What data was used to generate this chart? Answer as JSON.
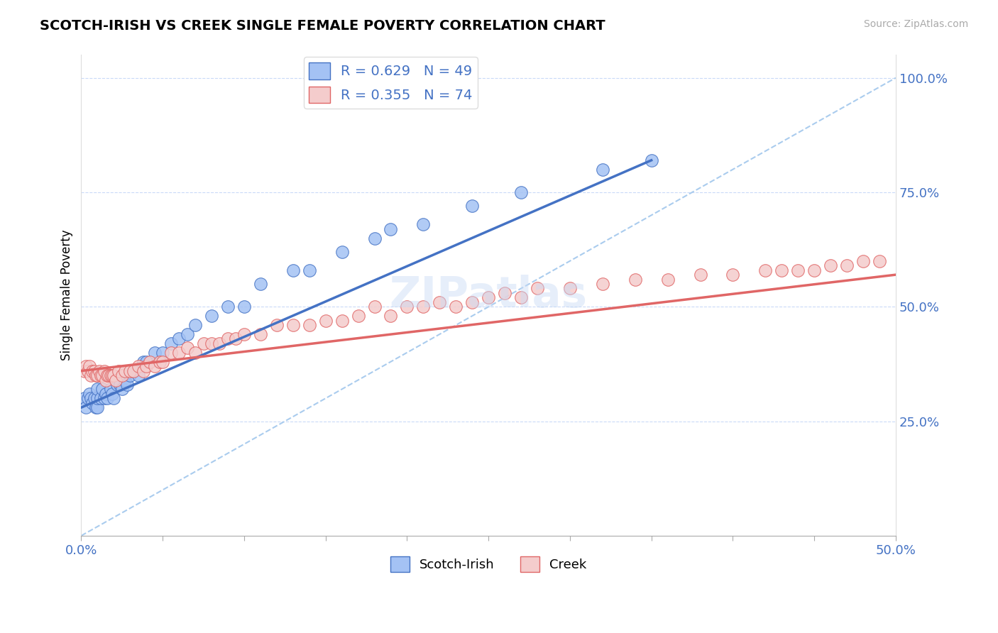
{
  "title": "SCOTCH-IRISH VS CREEK SINGLE FEMALE POVERTY CORRELATION CHART",
  "source": "Source: ZipAtlas.com",
  "ylabel": "Single Female Poverty",
  "xlim": [
    0.0,
    0.5
  ],
  "ylim": [
    0.0,
    1.05
  ],
  "scotch_irish_color": "#a4c2f4",
  "creek_color": "#f4cccc",
  "trend_scotch_color": "#4472c4",
  "trend_creek_color": "#e06666",
  "diagonal_color": "#aaccee",
  "R_scotch": 0.629,
  "N_scotch": 49,
  "R_creek": 0.355,
  "N_creek": 74,
  "scotch_trend_x0": 0.0,
  "scotch_trend_y0": 0.28,
  "scotch_trend_x1": 0.35,
  "scotch_trend_y1": 0.82,
  "creek_trend_x0": 0.0,
  "creek_trend_y0": 0.36,
  "creek_trend_x1": 0.5,
  "creek_trend_y1": 0.57,
  "scotch_irish_x": [
    0.002,
    0.003,
    0.004,
    0.005,
    0.006,
    0.007,
    0.008,
    0.009,
    0.01,
    0.01,
    0.01,
    0.012,
    0.013,
    0.014,
    0.015,
    0.016,
    0.018,
    0.019,
    0.02,
    0.022,
    0.024,
    0.025,
    0.027,
    0.028,
    0.03,
    0.032,
    0.035,
    0.038,
    0.04,
    0.045,
    0.05,
    0.055,
    0.06,
    0.065,
    0.07,
    0.08,
    0.09,
    0.1,
    0.11,
    0.13,
    0.14,
    0.16,
    0.18,
    0.19,
    0.21,
    0.24,
    0.27,
    0.32,
    0.35
  ],
  "scotch_irish_y": [
    0.3,
    0.28,
    0.3,
    0.31,
    0.3,
    0.29,
    0.3,
    0.28,
    0.28,
    0.3,
    0.32,
    0.3,
    0.32,
    0.3,
    0.31,
    0.3,
    0.32,
    0.31,
    0.3,
    0.33,
    0.33,
    0.32,
    0.34,
    0.33,
    0.35,
    0.36,
    0.35,
    0.38,
    0.38,
    0.4,
    0.4,
    0.42,
    0.43,
    0.44,
    0.46,
    0.48,
    0.5,
    0.5,
    0.55,
    0.58,
    0.58,
    0.62,
    0.65,
    0.67,
    0.68,
    0.72,
    0.75,
    0.8,
    0.82
  ],
  "creek_x": [
    0.002,
    0.003,
    0.004,
    0.005,
    0.006,
    0.007,
    0.008,
    0.009,
    0.01,
    0.011,
    0.012,
    0.013,
    0.014,
    0.015,
    0.016,
    0.017,
    0.018,
    0.019,
    0.02,
    0.021,
    0.023,
    0.025,
    0.027,
    0.03,
    0.032,
    0.035,
    0.038,
    0.04,
    0.042,
    0.045,
    0.048,
    0.05,
    0.055,
    0.06,
    0.065,
    0.07,
    0.075,
    0.08,
    0.085,
    0.09,
    0.095,
    0.1,
    0.11,
    0.12,
    0.13,
    0.14,
    0.15,
    0.16,
    0.17,
    0.18,
    0.19,
    0.2,
    0.21,
    0.22,
    0.23,
    0.24,
    0.25,
    0.26,
    0.27,
    0.28,
    0.3,
    0.32,
    0.34,
    0.36,
    0.38,
    0.4,
    0.42,
    0.43,
    0.44,
    0.45,
    0.46,
    0.47,
    0.48,
    0.49
  ],
  "creek_y": [
    0.36,
    0.37,
    0.36,
    0.37,
    0.35,
    0.36,
    0.36,
    0.35,
    0.35,
    0.36,
    0.35,
    0.35,
    0.36,
    0.34,
    0.35,
    0.35,
    0.35,
    0.35,
    0.35,
    0.34,
    0.36,
    0.35,
    0.36,
    0.36,
    0.36,
    0.37,
    0.36,
    0.37,
    0.38,
    0.37,
    0.38,
    0.38,
    0.4,
    0.4,
    0.41,
    0.4,
    0.42,
    0.42,
    0.42,
    0.43,
    0.43,
    0.44,
    0.44,
    0.46,
    0.46,
    0.46,
    0.47,
    0.47,
    0.48,
    0.5,
    0.48,
    0.5,
    0.5,
    0.51,
    0.5,
    0.51,
    0.52,
    0.53,
    0.52,
    0.54,
    0.54,
    0.55,
    0.56,
    0.56,
    0.57,
    0.57,
    0.58,
    0.58,
    0.58,
    0.58,
    0.59,
    0.59,
    0.6,
    0.6
  ]
}
